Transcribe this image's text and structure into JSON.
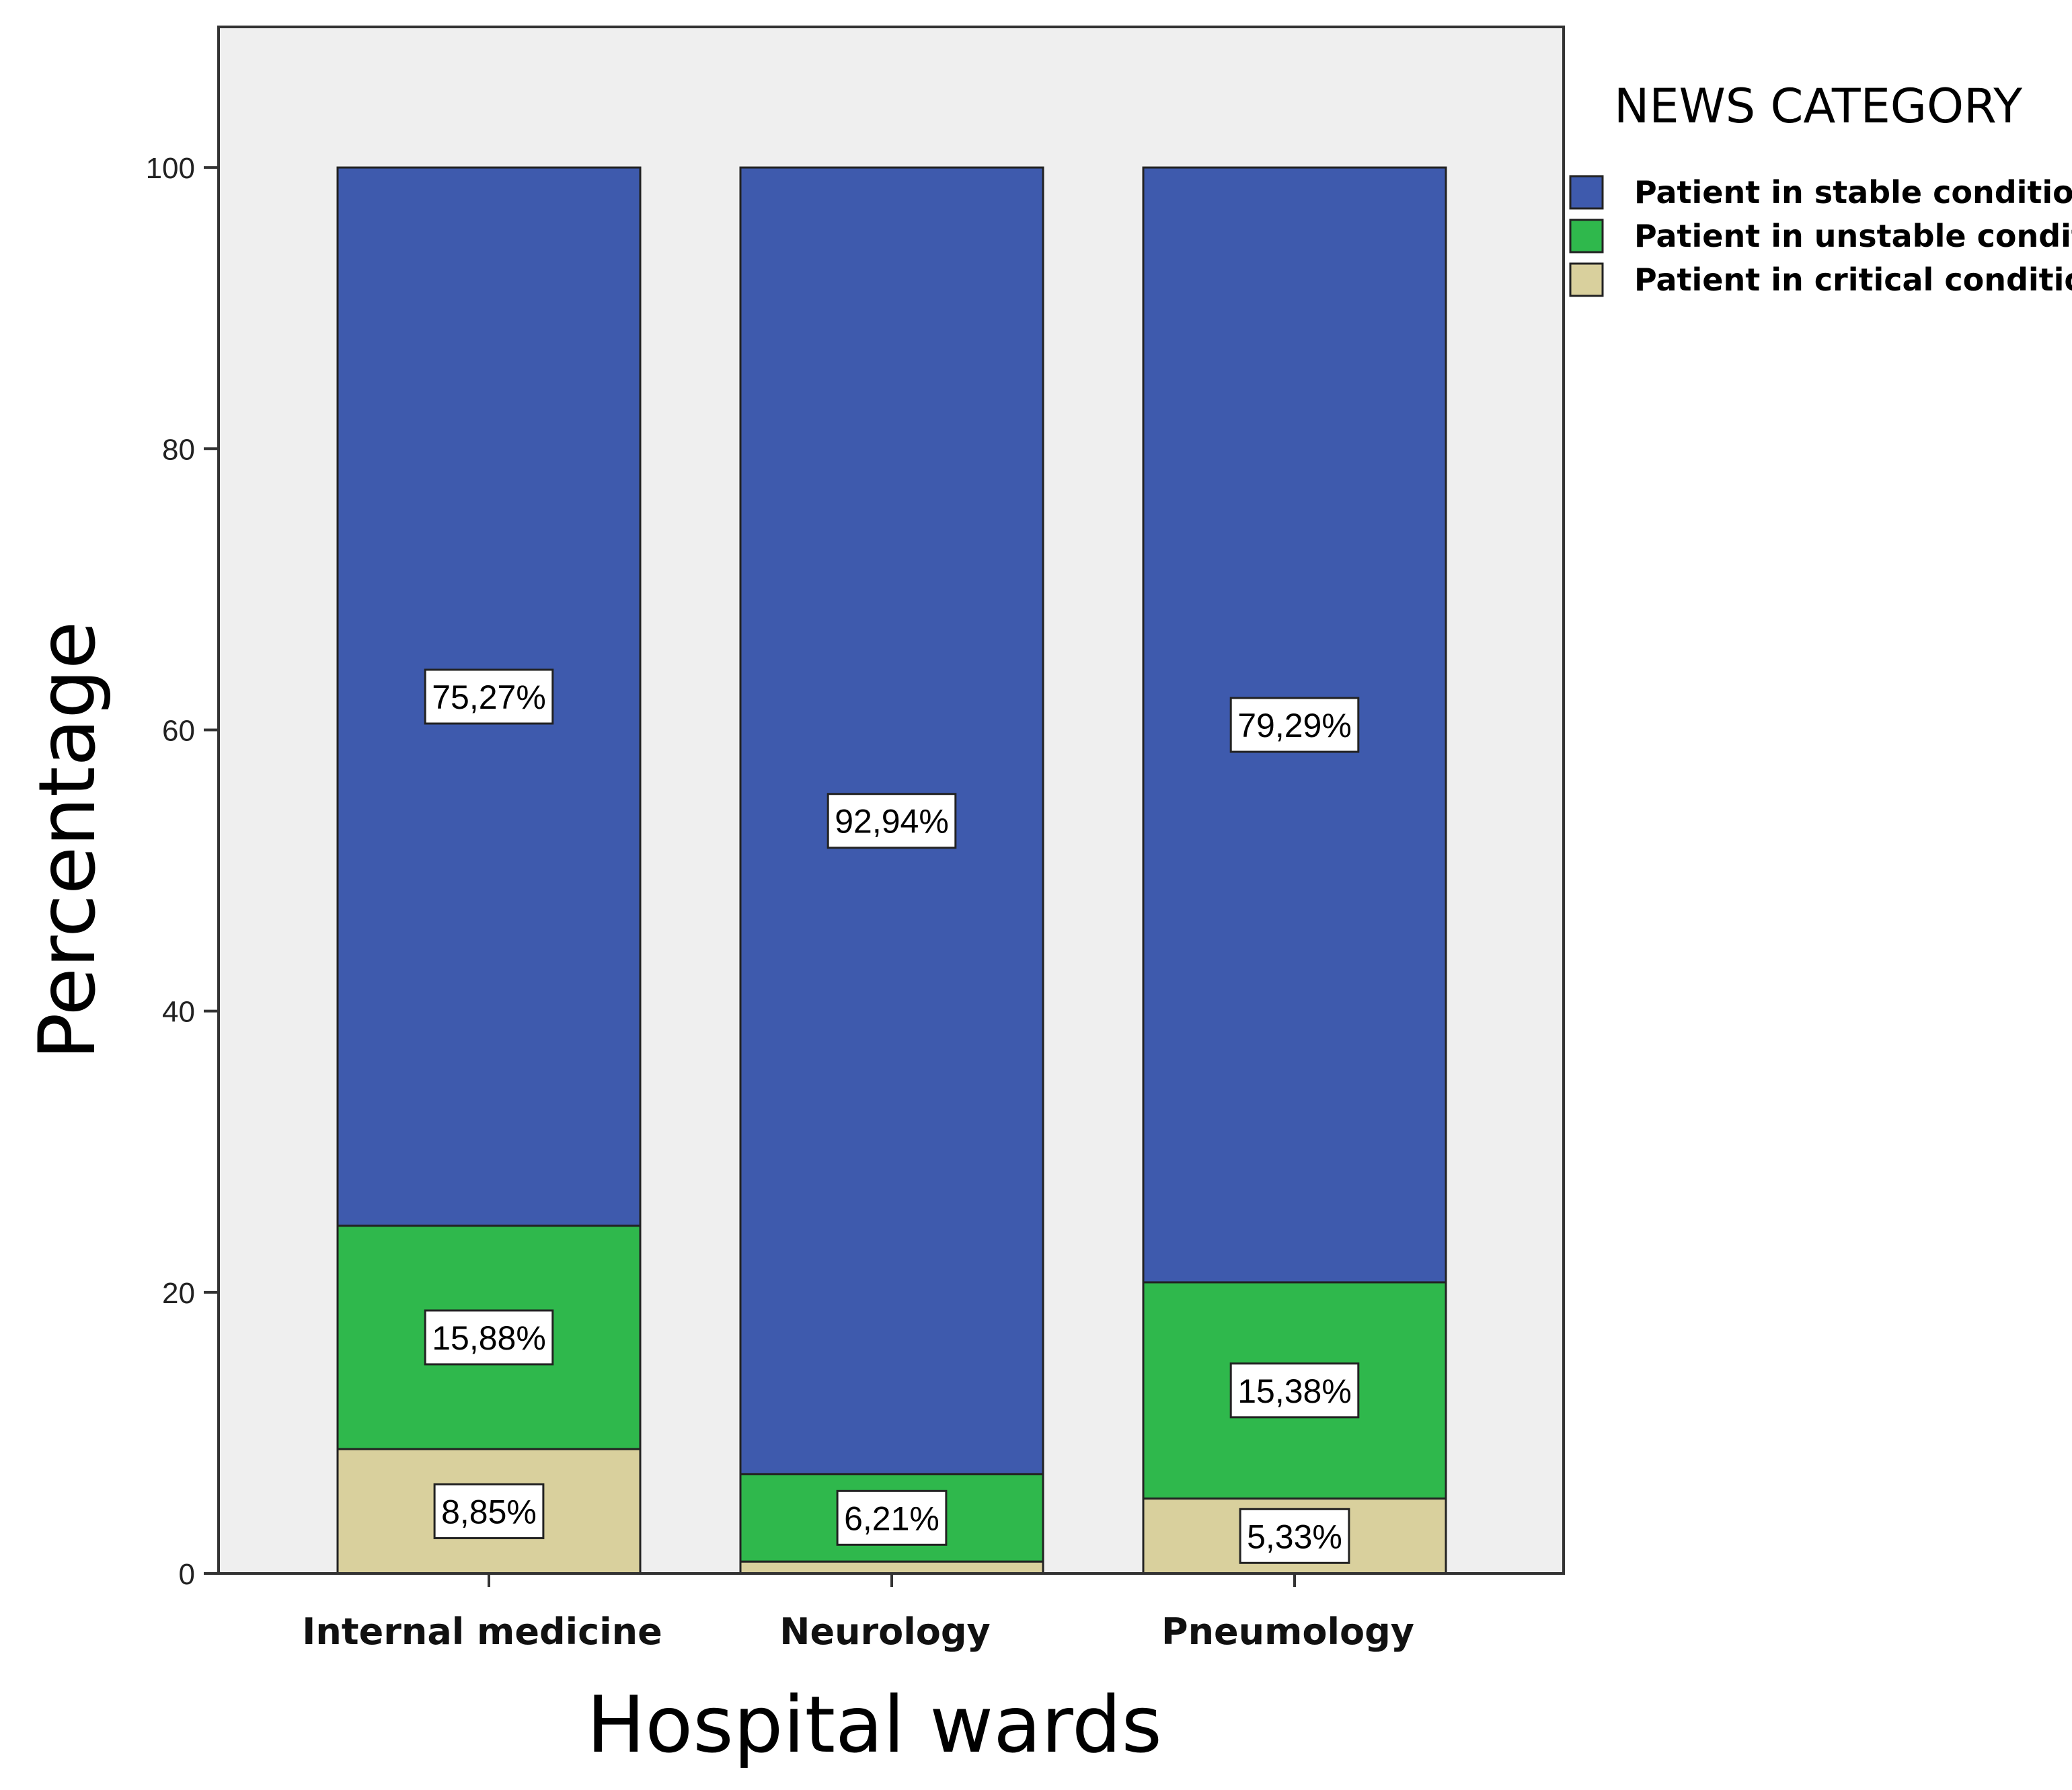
{
  "chart_data": {
    "type": "bar",
    "stacked": true,
    "xlabel": "Hospital wards",
    "ylabel": "Percentage",
    "ylim": [
      0,
      110
    ],
    "yticks": [
      0,
      20,
      40,
      60,
      80,
      100
    ],
    "categories": [
      "Internal medicine",
      "Neurology",
      "Pneumology"
    ],
    "legend_title": "NEWS CATEGORY",
    "legend_position": "top-right",
    "grid": false,
    "plot_background": "#efefef",
    "series": [
      {
        "name": "Patient in critical conditions",
        "color": "#d9d09d",
        "values": [
          8.85,
          0.85,
          5.33
        ],
        "labels": [
          "8,85%",
          "",
          "5,33%"
        ]
      },
      {
        "name": "Patient in unstable condition",
        "color": "#2fb84c",
        "values": [
          15.88,
          6.21,
          15.38
        ],
        "labels": [
          "15,88%",
          "6,21%",
          "15,38%"
        ]
      },
      {
        "name": "Patient in stable conditions",
        "color": "#3e5aad",
        "values": [
          75.27,
          92.94,
          79.29
        ],
        "labels": [
          "75,27%",
          "92,94%",
          "79,29%"
        ]
      }
    ],
    "legend_order": [
      "Patient in stable conditions",
      "Patient in unstable condition",
      "Patient in critical conditions"
    ]
  }
}
